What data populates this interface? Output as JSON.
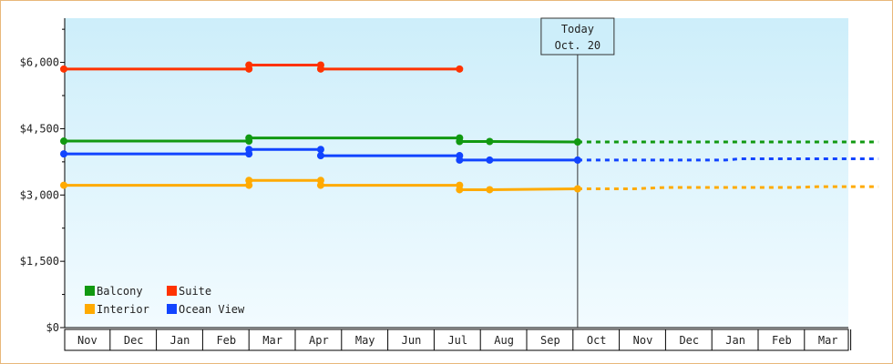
{
  "chart_data": {
    "type": "line",
    "x_labels": [
      "Nov",
      "Dec",
      "Jan",
      "Feb",
      "Mar",
      "Apr",
      "May",
      "Jun",
      "Jul",
      "Aug",
      "Sep",
      "Oct",
      "Nov",
      "Dec",
      "Jan",
      "Feb",
      "Mar"
    ],
    "y_ticks": [
      "$0",
      "$1,500",
      "$3,000",
      "$4,500",
      "$6,000"
    ],
    "ylim": [
      0,
      7000
    ],
    "annotation": {
      "line1": "Today",
      "line2": "Oct. 20",
      "x": 11.1
    },
    "legend_position": "bottom-left",
    "colors": {
      "Balcony": "#119911",
      "Suite": "#ff3300",
      "Interior": "#ffaa00",
      "Ocean View": "#1144ff"
    },
    "series": [
      {
        "name": "Balcony",
        "color": "#119911",
        "points": [
          [
            0,
            4220
          ],
          [
            4,
            4220
          ],
          [
            4,
            4290
          ],
          [
            8.55,
            4290
          ],
          [
            8.55,
            4210
          ],
          [
            9.2,
            4210
          ],
          [
            11.1,
            4200
          ]
        ],
        "markers": [
          [
            0,
            4220
          ],
          [
            4,
            4220
          ],
          [
            4,
            4290
          ],
          [
            8.55,
            4290
          ],
          [
            8.55,
            4210
          ],
          [
            9.2,
            4210
          ],
          [
            11.1,
            4200
          ]
        ],
        "forecast": [
          [
            11.1,
            4200
          ],
          [
            17.6,
            4200
          ]
        ]
      },
      {
        "name": "Suite",
        "color": "#ff3300",
        "points": [
          [
            0,
            5850
          ],
          [
            4,
            5850
          ],
          [
            4,
            5940
          ],
          [
            5.55,
            5940
          ],
          [
            5.55,
            5850
          ],
          [
            8.55,
            5850
          ]
        ],
        "markers": [
          [
            0,
            5850
          ],
          [
            4,
            5850
          ],
          [
            4,
            5940
          ],
          [
            5.55,
            5940
          ],
          [
            5.55,
            5850
          ],
          [
            8.55,
            5850
          ]
        ],
        "forecast": []
      },
      {
        "name": "Interior",
        "color": "#ffaa00",
        "points": [
          [
            0,
            3220
          ],
          [
            4,
            3220
          ],
          [
            4,
            3330
          ],
          [
            5.55,
            3330
          ],
          [
            5.55,
            3220
          ],
          [
            8.55,
            3220
          ],
          [
            8.55,
            3120
          ],
          [
            9.2,
            3120
          ],
          [
            11.1,
            3140
          ]
        ],
        "markers": [
          [
            0,
            3220
          ],
          [
            4,
            3220
          ],
          [
            4,
            3330
          ],
          [
            5.55,
            3330
          ],
          [
            5.55,
            3220
          ],
          [
            8.55,
            3220
          ],
          [
            8.55,
            3120
          ],
          [
            9.2,
            3120
          ],
          [
            11.1,
            3140
          ]
        ],
        "forecast": [
          [
            11.1,
            3140
          ],
          [
            12.3,
            3140
          ],
          [
            13,
            3170
          ],
          [
            15.8,
            3170
          ],
          [
            16.3,
            3190
          ],
          [
            17.6,
            3190
          ]
        ]
      },
      {
        "name": "Ocean View",
        "color": "#1144ff",
        "points": [
          [
            0,
            3930
          ],
          [
            4,
            3930
          ],
          [
            4,
            4030
          ],
          [
            5.55,
            4030
          ],
          [
            5.55,
            3890
          ],
          [
            8.55,
            3890
          ],
          [
            8.55,
            3790
          ],
          [
            9.2,
            3790
          ],
          [
            11.1,
            3790
          ]
        ],
        "markers": [
          [
            0,
            3930
          ],
          [
            4,
            3930
          ],
          [
            4,
            4030
          ],
          [
            5.55,
            4030
          ],
          [
            5.55,
            3890
          ],
          [
            8.55,
            3890
          ],
          [
            8.55,
            3790
          ],
          [
            9.2,
            3790
          ],
          [
            11.1,
            3790
          ]
        ],
        "forecast": [
          [
            11.1,
            3790
          ],
          [
            14.3,
            3790
          ],
          [
            14.6,
            3820
          ],
          [
            17.6,
            3820
          ]
        ]
      }
    ],
    "legend_items": [
      {
        "name": "Balcony",
        "color": "#119911",
        "col": 0,
        "row": 0
      },
      {
        "name": "Suite",
        "color": "#ff3300",
        "col": 1,
        "row": 0
      },
      {
        "name": "Interior",
        "color": "#ffaa00",
        "col": 0,
        "row": 1
      },
      {
        "name": "Ocean View",
        "color": "#1144ff",
        "col": 1,
        "row": 1
      }
    ]
  }
}
